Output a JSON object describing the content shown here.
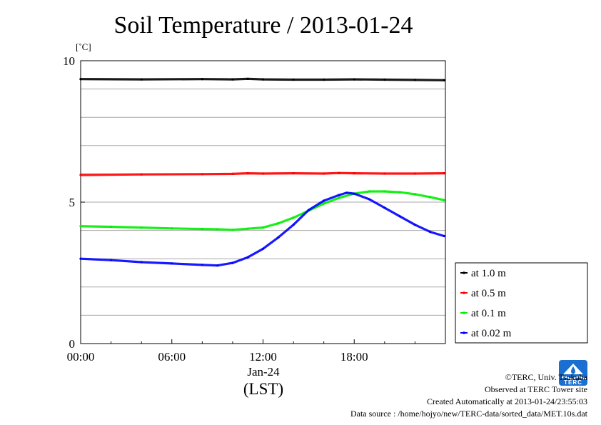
{
  "chart_data": {
    "type": "line",
    "title": "Soil Temperature / 2013-01-24",
    "ylabel": "[˚C]",
    "xlabel": "(LST)",
    "x_date_label": "Jan-24",
    "xlim": [
      "00:00",
      "24:00"
    ],
    "ylim": [
      0,
      10
    ],
    "x_ticks": [
      "00:00",
      "06:00",
      "12:00",
      "18:00"
    ],
    "y_ticks": [
      "0",
      "5",
      "10"
    ],
    "grid": true,
    "legend_position": "right",
    "series": [
      {
        "name": "at 1.0 m",
        "color": "#000000",
        "points": [
          [
            "00:00",
            9.35
          ],
          [
            "04:00",
            9.34
          ],
          [
            "08:00",
            9.35
          ],
          [
            "10:00",
            9.34
          ],
          [
            "11:00",
            9.36
          ],
          [
            "12:00",
            9.34
          ],
          [
            "14:00",
            9.33
          ],
          [
            "16:00",
            9.33
          ],
          [
            "18:00",
            9.34
          ],
          [
            "20:00",
            9.33
          ],
          [
            "22:00",
            9.32
          ],
          [
            "23:55",
            9.31
          ]
        ]
      },
      {
        "name": "at 0.5 m",
        "color": "#ff0000",
        "points": [
          [
            "00:00",
            5.96
          ],
          [
            "04:00",
            5.98
          ],
          [
            "08:00",
            5.99
          ],
          [
            "10:00",
            6.0
          ],
          [
            "11:00",
            6.02
          ],
          [
            "12:00",
            6.01
          ],
          [
            "14:00",
            6.02
          ],
          [
            "16:00",
            6.01
          ],
          [
            "17:00",
            6.03
          ],
          [
            "18:00",
            6.02
          ],
          [
            "20:00",
            6.01
          ],
          [
            "22:00",
            6.01
          ],
          [
            "23:55",
            6.02
          ]
        ]
      },
      {
        "name": "at 0.1 m",
        "color": "#00ee00",
        "points": [
          [
            "00:00",
            4.15
          ],
          [
            "02:00",
            4.13
          ],
          [
            "04:00",
            4.1
          ],
          [
            "06:00",
            4.07
          ],
          [
            "08:00",
            4.05
          ],
          [
            "09:00",
            4.04
          ],
          [
            "10:00",
            4.02
          ],
          [
            "11:00",
            4.06
          ],
          [
            "12:00",
            4.1
          ],
          [
            "13:00",
            4.25
          ],
          [
            "14:00",
            4.45
          ],
          [
            "15:00",
            4.7
          ],
          [
            "16:00",
            4.95
          ],
          [
            "17:00",
            5.15
          ],
          [
            "18:00",
            5.3
          ],
          [
            "19:00",
            5.38
          ],
          [
            "20:00",
            5.38
          ],
          [
            "21:00",
            5.35
          ],
          [
            "22:00",
            5.28
          ],
          [
            "23:00",
            5.18
          ],
          [
            "23:55",
            5.07
          ]
        ]
      },
      {
        "name": "at 0.02 m",
        "color": "#0000ff",
        "points": [
          [
            "00:00",
            3.0
          ],
          [
            "02:00",
            2.95
          ],
          [
            "04:00",
            2.88
          ],
          [
            "06:00",
            2.83
          ],
          [
            "08:00",
            2.78
          ],
          [
            "09:00",
            2.76
          ],
          [
            "10:00",
            2.85
          ],
          [
            "11:00",
            3.05
          ],
          [
            "12:00",
            3.35
          ],
          [
            "13:00",
            3.75
          ],
          [
            "14:00",
            4.2
          ],
          [
            "15:00",
            4.72
          ],
          [
            "16:00",
            5.05
          ],
          [
            "17:00",
            5.25
          ],
          [
            "17:30",
            5.33
          ],
          [
            "18:00",
            5.3
          ],
          [
            "19:00",
            5.1
          ],
          [
            "20:00",
            4.8
          ],
          [
            "21:00",
            4.5
          ],
          [
            "22:00",
            4.2
          ],
          [
            "23:00",
            3.95
          ],
          [
            "23:55",
            3.8
          ]
        ]
      }
    ]
  },
  "credits": {
    "copyright": "©TERC, Univ. Tsukuba",
    "observed": "Observed at TERC Tower site",
    "created": "Created Automatically at 2013-01-24/23:55:03",
    "source": "Data source : /home/hojyo/new/TERC-data/sorted_data/MET.10s.dat"
  },
  "logo": {
    "text": "TERC",
    "color": "#1a6fd1"
  }
}
